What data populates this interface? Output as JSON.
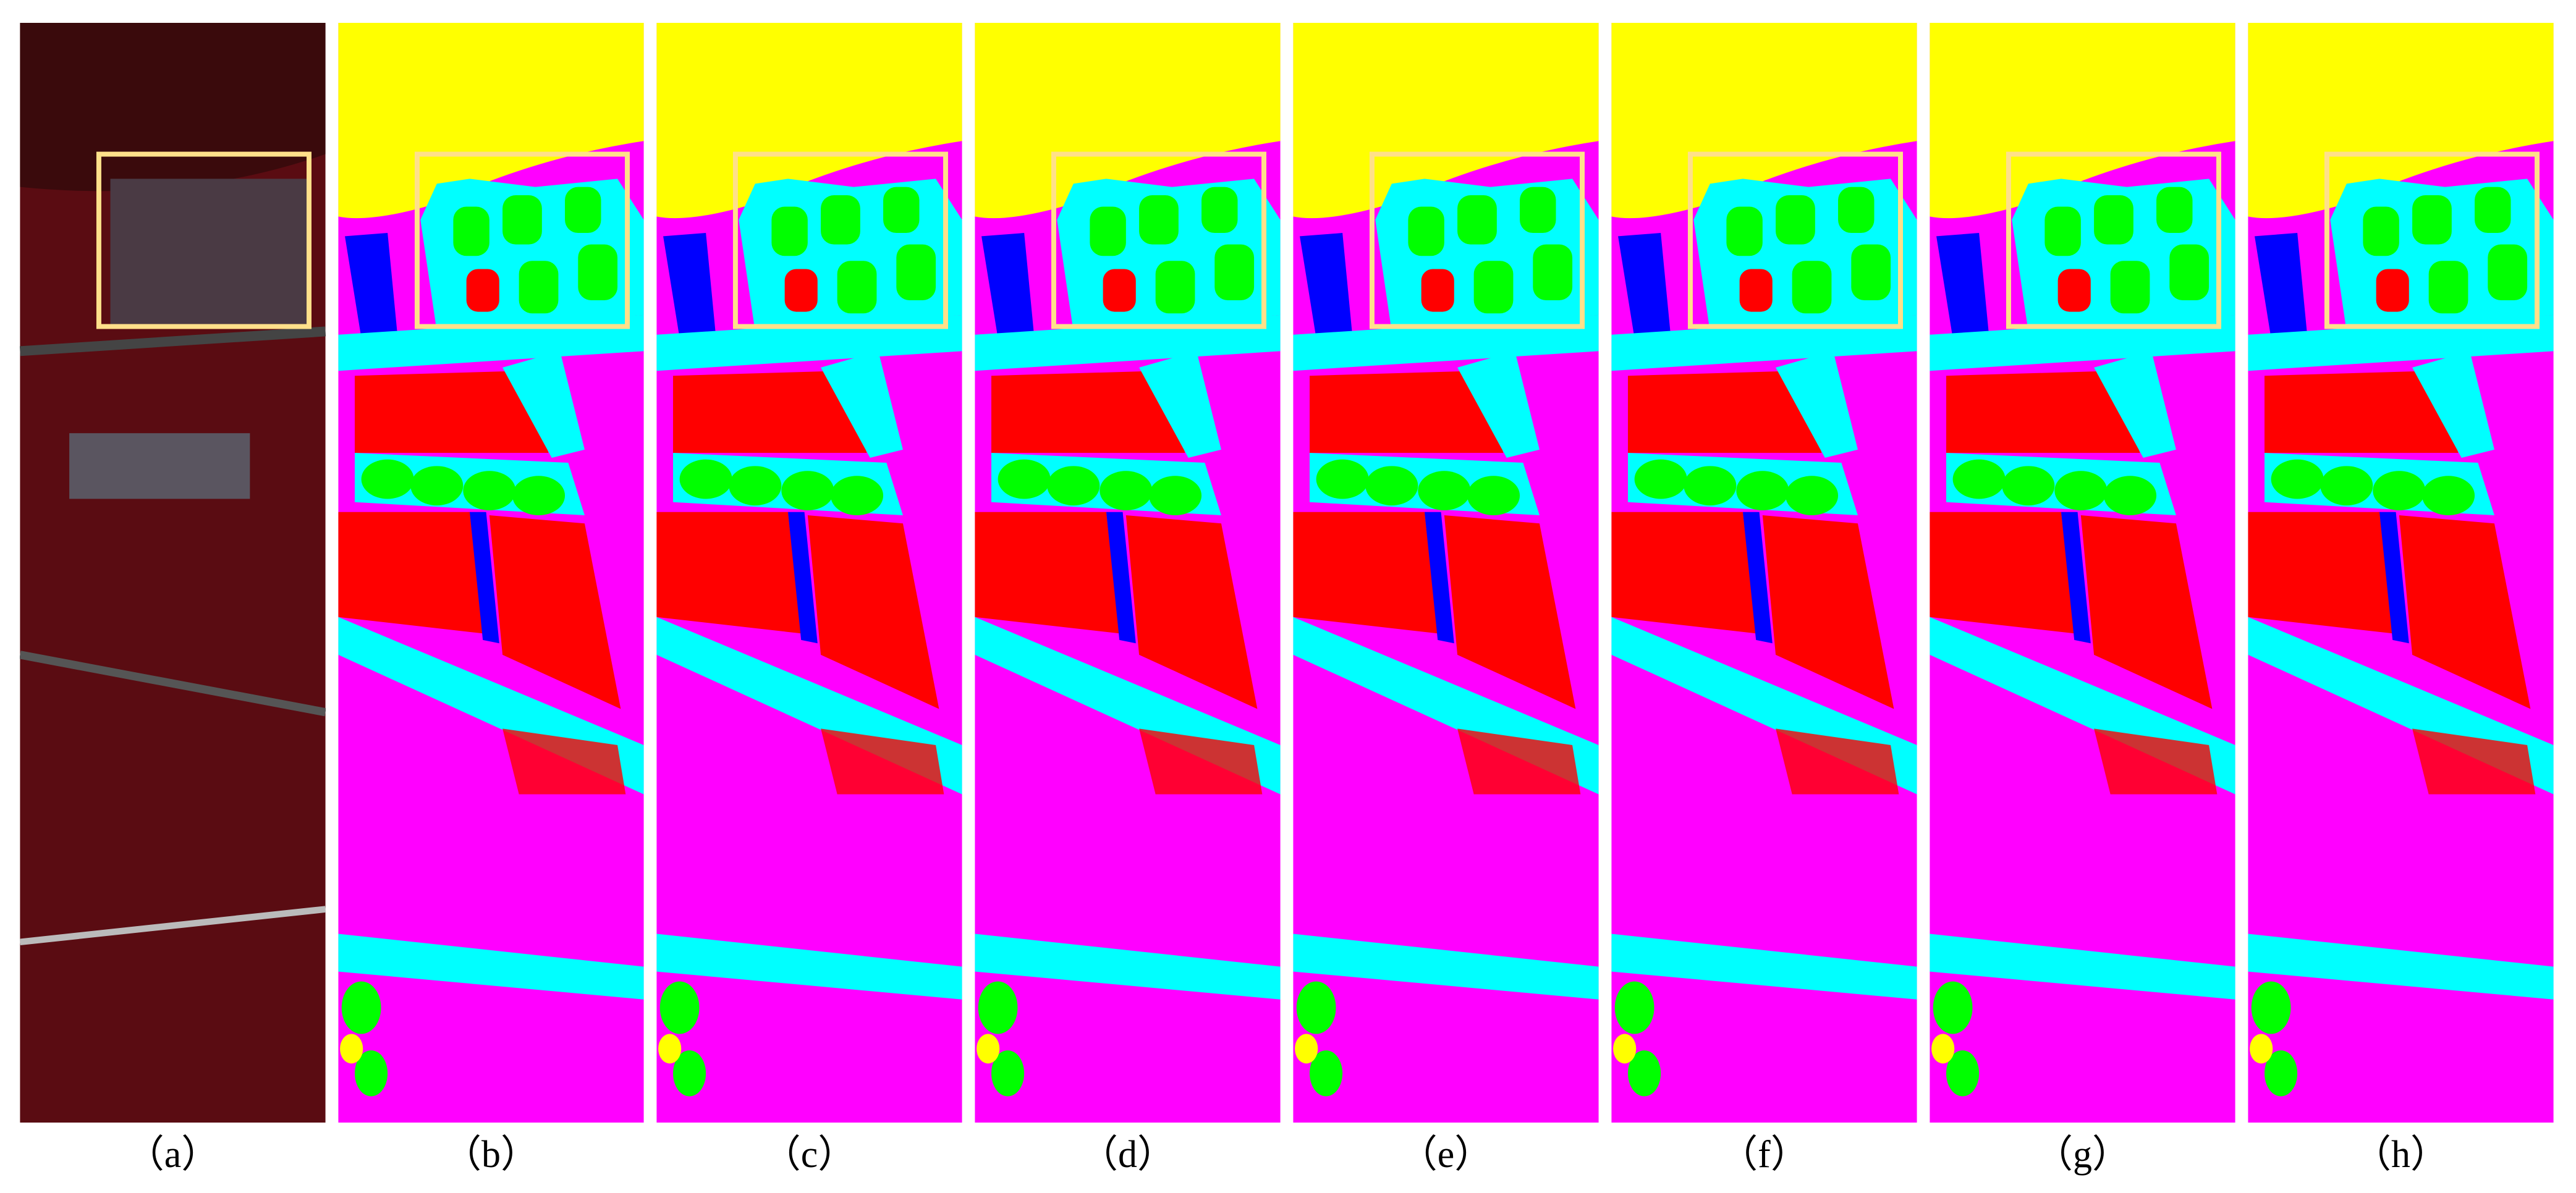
{
  "panels": [
    {
      "label": "（a）"
    },
    {
      "label": "（b）"
    },
    {
      "label": "（c）"
    },
    {
      "label": "（d）"
    },
    {
      "label": "（e）"
    },
    {
      "label": "（f）"
    },
    {
      "label": "（g）"
    },
    {
      "label": "（h）"
    }
  ]
}
